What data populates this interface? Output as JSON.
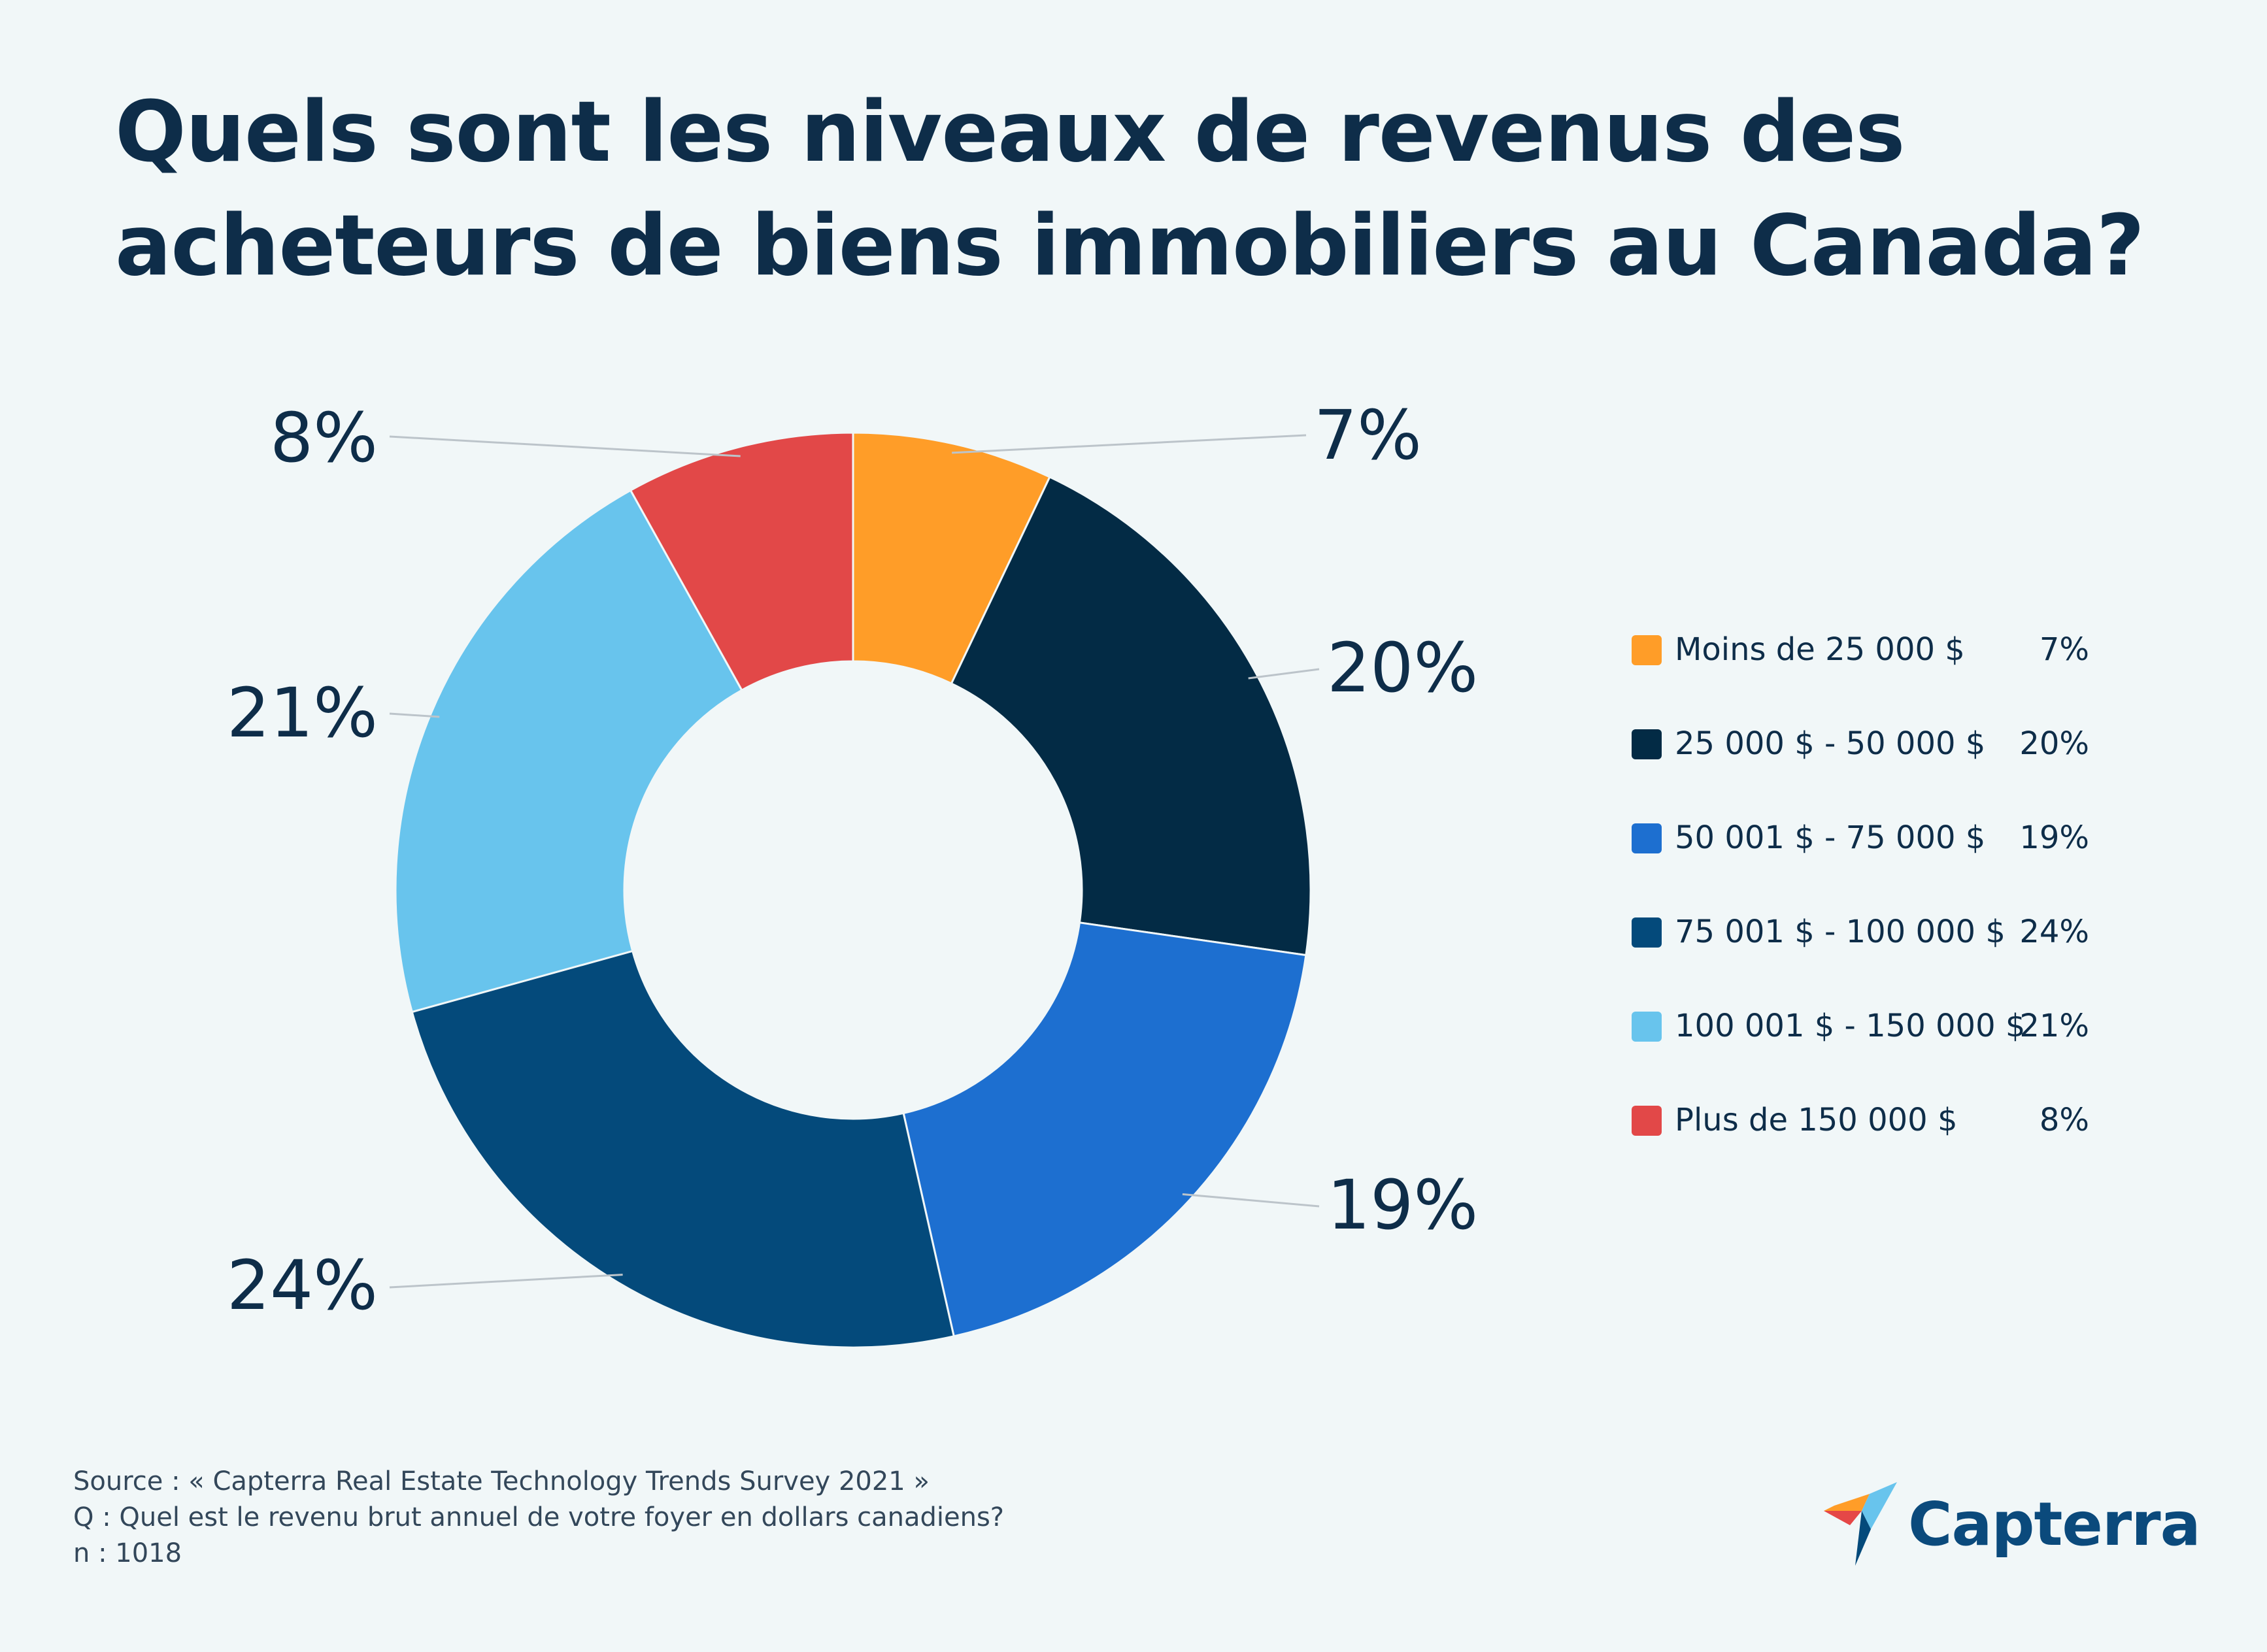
{
  "title": {
    "line1": "Quels sont les niveaux de revenus des",
    "line2": "acheteurs de biens immobiliers au Canada?"
  },
  "chart_data": {
    "type": "pie",
    "variant": "donut",
    "title": "Quels sont les niveaux de revenus des acheteurs de biens immobiliers au Canada?",
    "unit": "%",
    "categories": [
      "Moins de 25 000 $",
      "25 000 $ - 50 000 $",
      "50 001 $ - 75 000 $",
      "75 001 $ - 100 000 $",
      "100 001 $ - 150 000 $",
      "Plus de 150 000 $"
    ],
    "values": [
      7,
      20,
      19,
      24,
      21,
      8
    ],
    "labels": [
      "7%",
      "20%",
      "19%",
      "24%",
      "21%",
      "8%"
    ],
    "colors": [
      "#FF9D28",
      "#032B45",
      "#1D6FD0",
      "#044A7B",
      "#68C4ED",
      "#E24848"
    ],
    "legend_position": "right"
  },
  "footer": {
    "source": "Source : « Capterra Real Estate Technology Trends Survey 2021 »",
    "question": "Q : Quel est le revenu brut annuel de votre foyer en dollars canadiens?",
    "sample": "n : 1018"
  },
  "brand": {
    "name": "Capterra",
    "logo_icon": "capterra-arrow-icon",
    "logo_colors": [
      "#FF9D28",
      "#68C4ED",
      "#044A7B",
      "#E54747"
    ]
  }
}
